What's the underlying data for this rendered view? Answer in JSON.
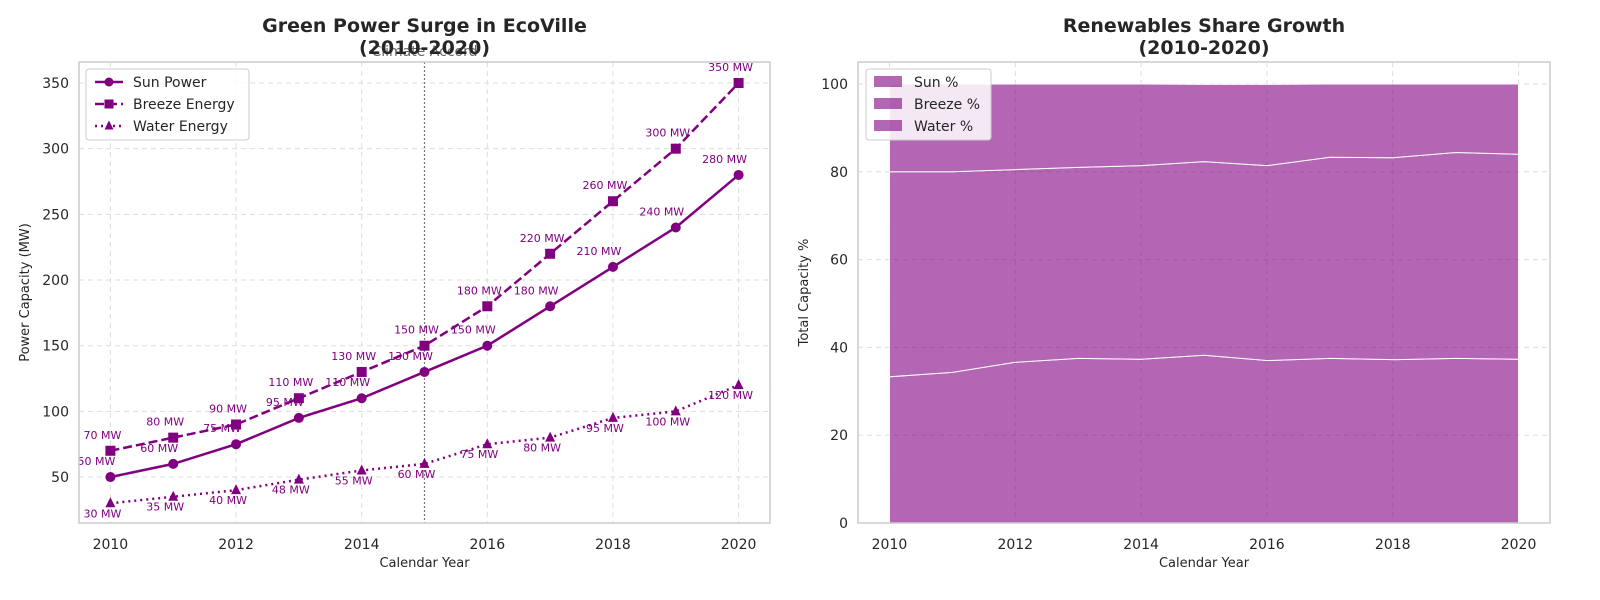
{
  "chart_data": [
    {
      "type": "line",
      "title": "Green Power Surge in EcoVille\n(2010-2020)",
      "xlabel": "Calendar Year",
      "ylabel": "Power Capacity (MW)",
      "x": [
        2010,
        2011,
        2012,
        2013,
        2014,
        2015,
        2016,
        2017,
        2018,
        2019,
        2020
      ],
      "xlim": [
        2009.5,
        2020.5
      ],
      "ylim": [
        15,
        366
      ],
      "xticks": [
        2010,
        2012,
        2014,
        2016,
        2018,
        2020
      ],
      "yticks": [
        50,
        100,
        150,
        200,
        250,
        300,
        350
      ],
      "grid": true,
      "legend": "upper-left",
      "series": [
        {
          "name": "Sun Power",
          "values": [
            50,
            60,
            75,
            95,
            110,
            130,
            150,
            180,
            210,
            240,
            280
          ],
          "marker": "circle",
          "dash": "solid",
          "labels": [
            "50 MW",
            "60 MW",
            "75 MW",
            "95 MW",
            "110 MW",
            "130 MW",
            "150 MW",
            "180 MW",
            "210 MW",
            "240 MW",
            "280 MW"
          ]
        },
        {
          "name": "Breeze Energy",
          "values": [
            70,
            80,
            90,
            110,
            130,
            150,
            180,
            220,
            260,
            300,
            350
          ],
          "marker": "square",
          "dash": "dashed",
          "labels": [
            "70 MW",
            "80 MW",
            "90 MW",
            "110 MW",
            "130 MW",
            "150 MW",
            "180 MW",
            "220 MW",
            "260 MW",
            "300 MW",
            "350 MW"
          ]
        },
        {
          "name": "Water Energy",
          "values": [
            30,
            35,
            40,
            48,
            55,
            60,
            75,
            80,
            95,
            100,
            120
          ],
          "marker": "triangle",
          "dash": "dotted",
          "labels": [
            "30 MW",
            "35 MW",
            "40 MW",
            "48 MW",
            "55 MW",
            "60 MW",
            "75 MW",
            "80 MW",
            "95 MW",
            "100 MW",
            "120 MW"
          ]
        }
      ],
      "annotations": [
        {
          "x": 2015,
          "text": "Climate Accord",
          "type": "vertical-line"
        }
      ],
      "color": "#800080"
    },
    {
      "type": "area",
      "title": "Renewables Share Growth\n(2010-2020)",
      "xlabel": "Calendar Year",
      "ylabel": "Total Capacity %",
      "x": [
        2010,
        2011,
        2012,
        2013,
        2014,
        2015,
        2016,
        2017,
        2018,
        2019,
        2020
      ],
      "xlim": [
        2009.5,
        2020.5
      ],
      "ylim": [
        0,
        105
      ],
      "xticks": [
        2010,
        2012,
        2014,
        2016,
        2018,
        2020
      ],
      "yticks": [
        0,
        20,
        40,
        60,
        80,
        100
      ],
      "grid": true,
      "stacked": true,
      "legend": "upper-left",
      "series": [
        {
          "name": "Sun %",
          "values": [
            33.3,
            34.3,
            36.6,
            37.5,
            37.3,
            38.2,
            37.0,
            37.5,
            37.2,
            37.5,
            37.3
          ]
        },
        {
          "name": "Breeze %",
          "values": [
            46.7,
            45.7,
            43.9,
            43.5,
            44.1,
            44.1,
            44.4,
            45.8,
            46.0,
            46.9,
            46.7
          ]
        },
        {
          "name": "Water %",
          "values": [
            20.0,
            20.0,
            19.5,
            19.0,
            18.6,
            17.6,
            18.5,
            16.7,
            16.8,
            15.6,
            16.0
          ]
        }
      ],
      "color": "#800080"
    }
  ]
}
